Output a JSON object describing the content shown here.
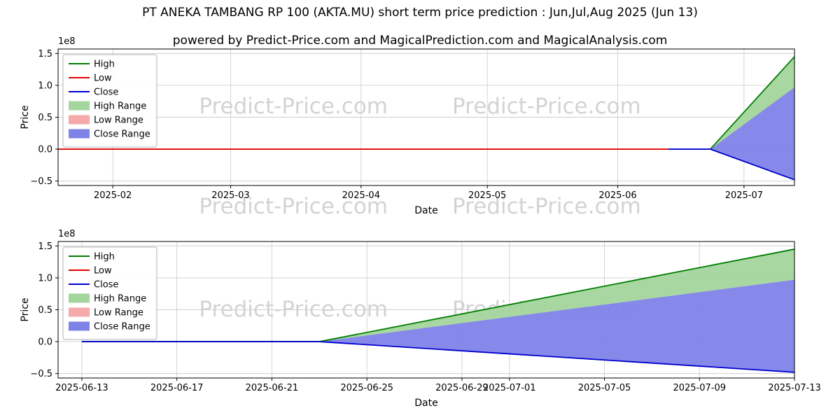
{
  "header": {
    "title": "PT ANEKA TAMBANG RP 100 (AKTA.MU) short term price prediction : Jun,Jul,Aug 2025 (Jun 13)",
    "subtitle": "powered by Predict-Price.com and MagicalPrediction.com and MagicalAnalysis.com"
  },
  "watermark": "Predict-Price.com",
  "colors": {
    "high": "#007d02",
    "low": "#e50000",
    "close": "#0000cd",
    "high_range": "#a3d59c",
    "low_range": "#f6a9a9",
    "close_range": "#7f83e8",
    "grid": "#cfcfcf",
    "axis": "#000000"
  },
  "legend": [
    {
      "label": "High",
      "type": "line",
      "color_key": "high"
    },
    {
      "label": "Low",
      "type": "line",
      "color_key": "low"
    },
    {
      "label": "Close",
      "type": "line",
      "color_key": "close"
    },
    {
      "label": "High Range",
      "type": "patch",
      "color_key": "high_range"
    },
    {
      "label": "Low Range",
      "type": "patch",
      "color_key": "low_range"
    },
    {
      "label": "Close Range",
      "type": "patch",
      "color_key": "close_range"
    }
  ],
  "chart_data": [
    {
      "type": "line",
      "name": "history-and-forecast-chart",
      "unit": "1e8",
      "offset_label": "1e8",
      "xlabel": "Date",
      "ylabel": "Price",
      "xlim": [
        "2025-01-19",
        "2025-07-13"
      ],
      "ylim": [
        -0.57,
        1.57
      ],
      "yticks": [
        {
          "v": -0.5,
          "label": "−0.5"
        },
        {
          "v": 0.0,
          "label": "0.0"
        },
        {
          "v": 0.5,
          "label": "0.5"
        },
        {
          "v": 1.0,
          "label": "1.0"
        },
        {
          "v": 1.5,
          "label": "1.5"
        }
      ],
      "xticks": [
        {
          "d": "2025-02-01",
          "label": "2025-02"
        },
        {
          "d": "2025-03-01",
          "label": "2025-03"
        },
        {
          "d": "2025-04-01",
          "label": "2025-04"
        },
        {
          "d": "2025-05-01",
          "label": "2025-05"
        },
        {
          "d": "2025-06-01",
          "label": "2025-06"
        },
        {
          "d": "2025-07-01",
          "label": "2025-07"
        }
      ],
      "areas": [
        {
          "name": "High Range",
          "color_key": "high_range",
          "points": [
            [
              "2025-06-23",
              0
            ],
            [
              "2025-07-13",
              1.45
            ],
            [
              "2025-07-13",
              0.97
            ]
          ]
        },
        {
          "name": "Close Range",
          "color_key": "close_range",
          "points": [
            [
              "2025-06-23",
              0
            ],
            [
              "2025-07-13",
              0.97
            ],
            [
              "2025-07-13",
              -0.48
            ]
          ]
        }
      ],
      "lines": [
        {
          "name": "Low",
          "color_key": "low",
          "points": [
            [
              "2025-01-19",
              0
            ],
            [
              "2025-06-13",
              0
            ]
          ]
        },
        {
          "name": "High",
          "color_key": "high",
          "points": [
            [
              "2025-06-23",
              0
            ],
            [
              "2025-07-13",
              1.45
            ]
          ]
        },
        {
          "name": "Close",
          "color_key": "close",
          "points": [
            [
              "2025-06-13",
              0
            ],
            [
              "2025-06-23",
              0
            ],
            [
              "2025-07-13",
              -0.48
            ]
          ]
        }
      ]
    },
    {
      "type": "line",
      "name": "forecast-zoom-chart",
      "unit": "1e8",
      "offset_label": "1e8",
      "xlabel": "Date",
      "ylabel": "Price",
      "xlim": [
        "2025-06-12",
        "2025-07-13"
      ],
      "ylim": [
        -0.57,
        1.57
      ],
      "yticks": [
        {
          "v": -0.5,
          "label": "−0.5"
        },
        {
          "v": 0.0,
          "label": "0.0"
        },
        {
          "v": 0.5,
          "label": "0.5"
        },
        {
          "v": 1.0,
          "label": "1.0"
        },
        {
          "v": 1.5,
          "label": "1.5"
        }
      ],
      "xticks": [
        {
          "d": "2025-06-13",
          "label": "2025-06-13"
        },
        {
          "d": "2025-06-17",
          "label": "2025-06-17"
        },
        {
          "d": "2025-06-21",
          "label": "2025-06-21"
        },
        {
          "d": "2025-06-25",
          "label": "2025-06-25"
        },
        {
          "d": "2025-06-29",
          "label": "2025-06-29"
        },
        {
          "d": "2025-07-01",
          "label": "2025-07-01"
        },
        {
          "d": "2025-07-05",
          "label": "2025-07-05"
        },
        {
          "d": "2025-07-09",
          "label": "2025-07-09"
        },
        {
          "d": "2025-07-13",
          "label": "2025-07-13"
        }
      ],
      "areas": [
        {
          "name": "High Range",
          "color_key": "high_range",
          "points": [
            [
              "2025-06-23",
              0
            ],
            [
              "2025-07-13",
              1.45
            ],
            [
              "2025-07-13",
              0.97
            ]
          ]
        },
        {
          "name": "Close Range",
          "color_key": "close_range",
          "points": [
            [
              "2025-06-23",
              0
            ],
            [
              "2025-07-13",
              0.97
            ],
            [
              "2025-07-13",
              -0.48
            ]
          ]
        }
      ],
      "lines": [
        {
          "name": "Low",
          "color_key": "low",
          "points": [
            [
              "2025-06-13",
              0
            ],
            [
              "2025-06-23",
              0
            ]
          ]
        },
        {
          "name": "High",
          "color_key": "high",
          "points": [
            [
              "2025-06-13",
              0
            ],
            [
              "2025-06-23",
              0
            ],
            [
              "2025-07-13",
              1.45
            ]
          ]
        },
        {
          "name": "Close",
          "color_key": "close",
          "points": [
            [
              "2025-06-13",
              0
            ],
            [
              "2025-06-23",
              0
            ],
            [
              "2025-07-13",
              -0.48
            ]
          ]
        }
      ]
    }
  ]
}
